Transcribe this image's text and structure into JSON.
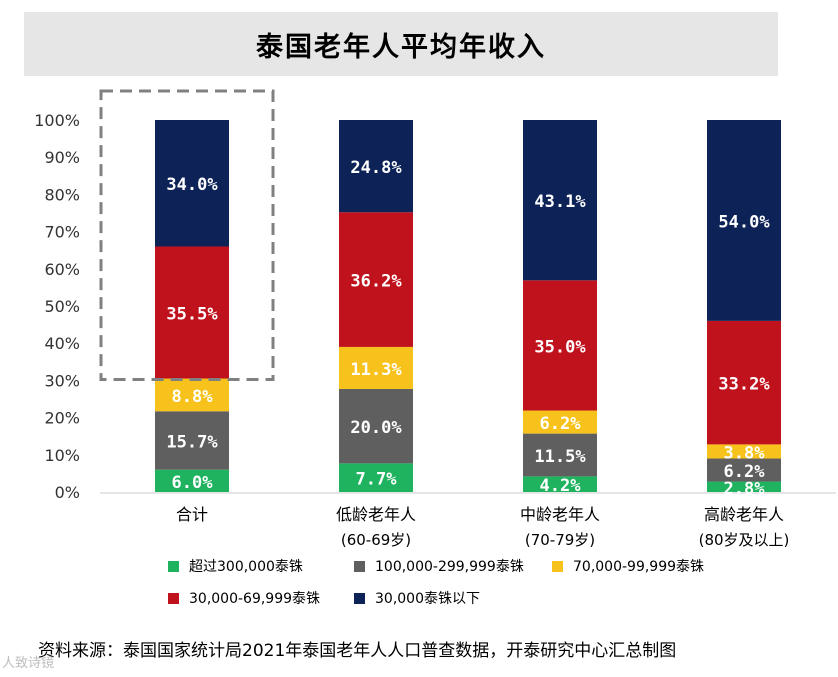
{
  "title": "泰国老年人平均年收入",
  "chart_data": {
    "type": "bar",
    "stacked": true,
    "percent": true,
    "categories": [
      "合计",
      "低龄老年人",
      "中龄老年人",
      "高龄老年人"
    ],
    "category_sublabels": [
      "",
      "(60-69岁)",
      "(70-79岁)",
      "(80岁及以上)"
    ],
    "ylim": [
      0,
      100
    ],
    "yticks": [
      "0%",
      "10%",
      "20%",
      "30%",
      "40%",
      "50%",
      "60%",
      "70%",
      "80%",
      "90%",
      "100%"
    ],
    "series": [
      {
        "name": "超过300,000泰铢",
        "color": "#1fb35f",
        "values": [
          6.0,
          7.7,
          4.2,
          2.8
        ],
        "labels": [
          "6.0%",
          "7.7%",
          "4.2%",
          "2.8%"
        ]
      },
      {
        "name": "100,000-299,999泰铢",
        "color": "#5f5f5f",
        "values": [
          15.7,
          20.0,
          11.5,
          6.2
        ],
        "labels": [
          "15.7%",
          "20.0%",
          "11.5%",
          "6.2%"
        ]
      },
      {
        "name": "70,000-99,999泰铢",
        "color": "#f7c21b",
        "values": [
          8.8,
          11.3,
          6.2,
          3.8
        ],
        "labels": [
          "8.8%",
          "11.3%",
          "6.2%",
          "3.8%"
        ]
      },
      {
        "name": "30,000-69,999泰铢",
        "color": "#c0121c",
        "values": [
          35.5,
          36.2,
          35.0,
          33.2
        ],
        "labels": [
          "35.5%",
          "36.2%",
          "35.0%",
          "33.2%"
        ]
      },
      {
        "name": "30,000泰铢以下",
        "color": "#0d2257",
        "values": [
          34.0,
          24.8,
          43.1,
          54.0
        ],
        "labels": [
          "34.0%",
          "24.8%",
          "43.1%",
          "54.0%"
        ]
      }
    ],
    "highlight_category": "合计"
  },
  "source": "资料来源：泰国国家统计局2021年泰国老年人人口普查数据，开泰研究中心汇总制图",
  "watermark": "人致诗镜"
}
